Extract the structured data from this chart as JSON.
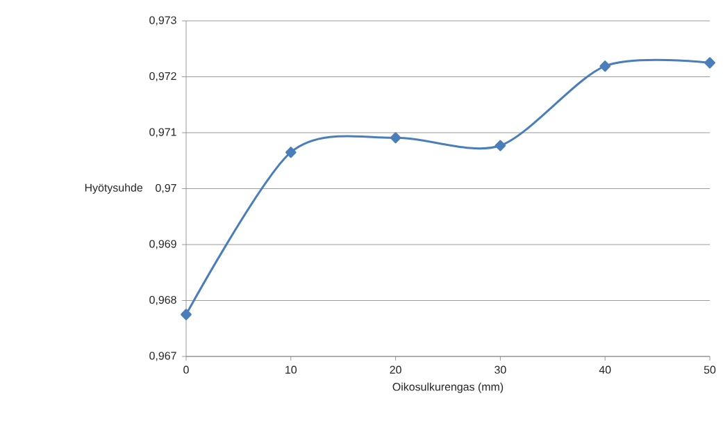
{
  "chart_data": {
    "type": "line",
    "xlabel": "Oikosulkurengas (mm)",
    "ylabel": "Hyötysuhde",
    "x": [
      0,
      10,
      20,
      30,
      40,
      50
    ],
    "series": [
      {
        "color": "#4a7ebb",
        "values": [
          0.96775,
          0.97065,
          0.97091,
          0.97077,
          0.97219,
          0.97225
        ]
      }
    ],
    "xlim": [
      0,
      50
    ],
    "xticks": [
      0,
      10,
      20,
      30,
      40,
      50
    ],
    "ylim": [
      0.967,
      0.973
    ],
    "yticks": [
      {
        "value": 0.967,
        "label": "0,967"
      },
      {
        "value": 0.968,
        "label": "0,968"
      },
      {
        "value": 0.969,
        "label": "0,969"
      },
      {
        "value": 0.97,
        "label": "0,97"
      },
      {
        "value": 0.971,
        "label": "0,971"
      },
      {
        "value": 0.972,
        "label": "0,972"
      },
      {
        "value": 0.973,
        "label": "0,973"
      }
    ],
    "grid": "y",
    "marker": "diamond",
    "line_style": "solid"
  }
}
